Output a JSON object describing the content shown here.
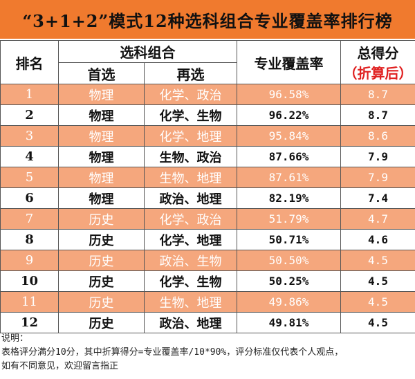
{
  "title": "“3+1+2”模式12种选科组合专业覆盖率排行榜",
  "headers": {
    "rank": "排名",
    "combo": "选科组合",
    "first": "首选",
    "second": "再选",
    "coverage": "专业覆盖率",
    "score": "总得分",
    "score_note": "（折算后）"
  },
  "rows": [
    {
      "rank": "1",
      "first": "物理",
      "second": "化学、政治",
      "coverage": "96.58%",
      "score": "8.7"
    },
    {
      "rank": "2",
      "first": "物理",
      "second": "化学、生物",
      "coverage": "96.22%",
      "score": "8.7"
    },
    {
      "rank": "3",
      "first": "物理",
      "second": "化学、地理",
      "coverage": "95.84%",
      "score": "8.6"
    },
    {
      "rank": "4",
      "first": "物理",
      "second": "生物、政治",
      "coverage": "87.66%",
      "score": "7.9"
    },
    {
      "rank": "5",
      "first": "物理",
      "second": "生物、地理",
      "coverage": "87.61%",
      "score": "7.9"
    },
    {
      "rank": "6",
      "first": "物理",
      "second": "政治、地理",
      "coverage": "82.19%",
      "score": "7.4"
    },
    {
      "rank": "7",
      "first": "历史",
      "second": "化学、政治",
      "coverage": "51.79%",
      "score": "4.7"
    },
    {
      "rank": "8",
      "first": "历史",
      "second": "化学、地理",
      "coverage": "50.71%",
      "score": "4.6"
    },
    {
      "rank": "9",
      "first": "历史",
      "second": "政治、生物",
      "coverage": "50.50%",
      "score": "4.5"
    },
    {
      "rank": "10",
      "first": "历史",
      "second": "化学、生物",
      "coverage": "50.25%",
      "score": "4.5"
    },
    {
      "rank": "11",
      "first": "历史",
      "second": "生物、地理",
      "coverage": "49.86%",
      "score": "4.5"
    },
    {
      "rank": "12",
      "first": "历史",
      "second": "政治、地理",
      "coverage": "49.81%",
      "score": "4.5"
    }
  ],
  "notes": {
    "label": "说明：",
    "line1": "表格评分满分10分，其中折算得分=专业覆盖率/10*90%，评分标准仅代表个人观点，",
    "line2": "如有不同意见，欢迎留言指正"
  },
  "colors": {
    "title_bg": "#f07a2e",
    "odd_row_bg": "#f5a77d",
    "accent_red": "#e02020"
  }
}
